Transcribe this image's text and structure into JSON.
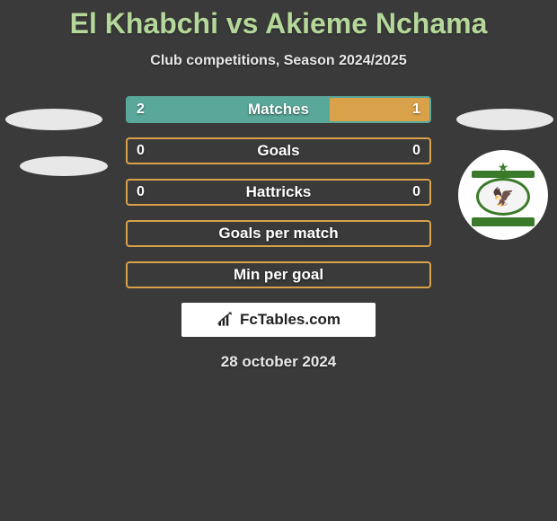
{
  "title": "El Khabchi vs Akieme Nchama",
  "subtitle": "Club competitions, Season 2024/2025",
  "date": "28 october 2024",
  "logo_text": "FcTables.com",
  "colors": {
    "accent_green": "#b5d89a",
    "bar_teal": "#5aa89a",
    "bar_orange": "#d9a24a",
    "background": "#3a3a3a",
    "ellipse": "#e8e8e8",
    "white": "#ffffff"
  },
  "bars": [
    {
      "label": "Matches",
      "left_val": "2",
      "right_val": "1",
      "border_color": "#5aa89a",
      "left_fill_color": "#5aa89a",
      "left_fill_pct": 67,
      "right_fill_color": "#d9a24a",
      "right_fill_pct": 33
    },
    {
      "label": "Goals",
      "left_val": "0",
      "right_val": "0",
      "border_color": "#d9a24a",
      "left_fill_color": "#d9a24a",
      "left_fill_pct": 0,
      "right_fill_color": "#d9a24a",
      "right_fill_pct": 0
    },
    {
      "label": "Hattricks",
      "left_val": "0",
      "right_val": "0",
      "border_color": "#d9a24a",
      "left_fill_color": "#d9a24a",
      "left_fill_pct": 0,
      "right_fill_color": "#d9a24a",
      "right_fill_pct": 0
    },
    {
      "label": "Goals per match",
      "left_val": "",
      "right_val": "",
      "border_color": "#d9a24a",
      "left_fill_color": "#d9a24a",
      "left_fill_pct": 0,
      "right_fill_color": "#d9a24a",
      "right_fill_pct": 0
    },
    {
      "label": "Min per goal",
      "left_val": "",
      "right_val": "",
      "border_color": "#d9a24a",
      "left_fill_color": "#d9a24a",
      "left_fill_pct": 0,
      "right_fill_color": "#d9a24a",
      "right_fill_pct": 0
    }
  ]
}
